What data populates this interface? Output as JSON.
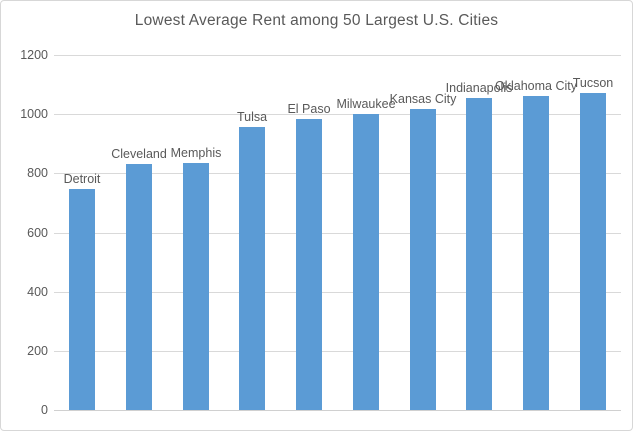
{
  "chart_data": {
    "type": "bar",
    "title": "Lowest Average Rent among 50 Largest U.S. Cities",
    "categories": [
      "Detroit",
      "Cleveland",
      "Memphis",
      "Tulsa",
      "El Paso",
      "Milwaukee",
      "Kansas City",
      "Indianapolis",
      "Oklahoma City",
      "Tucson"
    ],
    "values": [
      746,
      832,
      836,
      958,
      985,
      1001,
      1018,
      1056,
      1063,
      1071
    ],
    "xlabel": "",
    "ylabel": "",
    "ylim": [
      0,
      1200
    ],
    "yticks": [
      0,
      200,
      400,
      600,
      800,
      1000,
      1200
    ],
    "grid": true,
    "legend": false,
    "data_labels": "category-names-above-bars",
    "bar_color": "#5b9bd5",
    "text_color": "#595959",
    "gridline_color": "#d9d9d9",
    "background_color": "#ffffff",
    "border_color": "#d7d7d7"
  }
}
